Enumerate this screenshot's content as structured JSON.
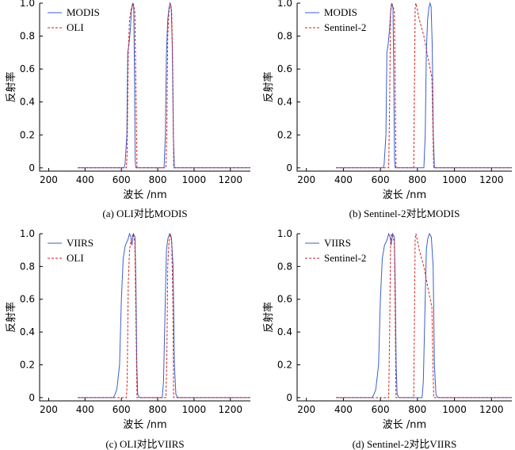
{
  "chart_data": [
    {
      "type": "line",
      "caption": "(a) OLI对比MODIS",
      "xlabel": "波长 /nm",
      "ylabel": "反射率",
      "xlim": [
        150,
        1310
      ],
      "ylim": [
        -0.02,
        1.0
      ],
      "xticks": [
        200,
        400,
        600,
        800,
        1000,
        1200
      ],
      "yticks": [
        0,
        0.2,
        0.4,
        0.6,
        0.8,
        1.0
      ],
      "ytick_labels": [
        "0",
        "0.2",
        "0.4",
        "0.6",
        "0.8",
        "1.0"
      ],
      "legend_position": "top-left",
      "series": [
        {
          "name": "MODIS",
          "style": "solid",
          "color": "#3a5fcd",
          "points": [
            [
              360,
              0
            ],
            [
              615,
              0
            ],
            [
              620,
              0.02
            ],
            [
              630,
              0.2
            ],
            [
              635,
              0.7
            ],
            [
              642,
              0.75
            ],
            [
              650,
              0.85
            ],
            [
              655,
              0.95
            ],
            [
              662,
              1.0
            ],
            [
              668,
              0.97
            ],
            [
              672,
              0.6
            ],
            [
              676,
              0.05
            ],
            [
              680,
              0
            ],
            [
              835,
              0
            ],
            [
              842,
              0.2
            ],
            [
              848,
              0.7
            ],
            [
              855,
              0.9
            ],
            [
              862,
              0.97
            ],
            [
              868,
              1.0
            ],
            [
              874,
              0.98
            ],
            [
              880,
              0.75
            ],
            [
              886,
              0.2
            ],
            [
              892,
              0
            ],
            [
              1310,
              0
            ]
          ]
        },
        {
          "name": "OLI",
          "style": "dashed",
          "color": "#d22020",
          "points": [
            [
              360,
              0
            ],
            [
              628,
              0
            ],
            [
              632,
              0.1
            ],
            [
              638,
              0.7
            ],
            [
              645,
              0.9
            ],
            [
              655,
              0.97
            ],
            [
              665,
              1.0
            ],
            [
              674,
              0.95
            ],
            [
              680,
              0.5
            ],
            [
              686,
              0
            ],
            [
              845,
              0
            ],
            [
              850,
              0.2
            ],
            [
              855,
              0.8
            ],
            [
              862,
              0.95
            ],
            [
              870,
              1.0
            ],
            [
              877,
              0.95
            ],
            [
              883,
              0.6
            ],
            [
              888,
              0
            ],
            [
              1310,
              0
            ]
          ]
        }
      ]
    },
    {
      "type": "line",
      "caption": "(b) Sentinel-2对比MODIS",
      "xlabel": "波长 /nm",
      "ylabel": "反射率",
      "xlim": [
        150,
        1310
      ],
      "ylim": [
        -0.02,
        1.0
      ],
      "xticks": [
        200,
        400,
        600,
        800,
        1000,
        1200
      ],
      "yticks": [
        0,
        0.2,
        0.4,
        0.6,
        0.8,
        1.0
      ],
      "ytick_labels": [
        "0",
        "0.2",
        "0.4",
        "0.6",
        "0.8",
        "1.0"
      ],
      "legend_position": "top-left",
      "series": [
        {
          "name": "MODIS",
          "style": "solid",
          "color": "#3a5fcd",
          "points": [
            [
              360,
              0
            ],
            [
              615,
              0
            ],
            [
              620,
              0.02
            ],
            [
              630,
              0.2
            ],
            [
              635,
              0.7
            ],
            [
              642,
              0.75
            ],
            [
              650,
              0.85
            ],
            [
              655,
              0.95
            ],
            [
              662,
              1.0
            ],
            [
              668,
              0.97
            ],
            [
              672,
              0.6
            ],
            [
              676,
              0.05
            ],
            [
              680,
              0
            ],
            [
              835,
              0
            ],
            [
              842,
              0.2
            ],
            [
              848,
              0.7
            ],
            [
              855,
              0.9
            ],
            [
              862,
              0.97
            ],
            [
              868,
              1.0
            ],
            [
              874,
              0.98
            ],
            [
              880,
              0.75
            ],
            [
              886,
              0.2
            ],
            [
              892,
              0
            ],
            [
              1310,
              0
            ]
          ]
        },
        {
          "name": "Sentinel-2",
          "style": "dashed",
          "color": "#d22020",
          "points": [
            [
              360,
              0
            ],
            [
              645,
              0
            ],
            [
              650,
              0.4
            ],
            [
              655,
              0.95
            ],
            [
              660,
              1.0
            ],
            [
              668,
              0.98
            ],
            [
              675,
              0.95
            ],
            [
              680,
              0.5
            ],
            [
              684,
              0
            ],
            [
              780,
              0
            ],
            [
              784,
              0.5
            ],
            [
              788,
              0.97
            ],
            [
              792,
              1.0
            ],
            [
              810,
              0.9
            ],
            [
              835,
              0.8
            ],
            [
              860,
              0.65
            ],
            [
              878,
              0.55
            ],
            [
              884,
              0.2
            ],
            [
              888,
              0
            ],
            [
              1310,
              0
            ]
          ]
        }
      ]
    },
    {
      "type": "line",
      "caption": "(c) OLI对比VIIRS",
      "xlabel": "波长 /nm",
      "ylabel": "反射率",
      "xlim": [
        150,
        1310
      ],
      "ylim": [
        -0.02,
        1.0
      ],
      "xticks": [
        200,
        400,
        600,
        800,
        1000,
        1200
      ],
      "yticks": [
        0,
        0.2,
        0.4,
        0.6,
        0.8,
        1.0
      ],
      "ytick_labels": [
        "0",
        "0.2",
        "0.4",
        "0.6",
        "0.8",
        "1.0"
      ],
      "legend_position": "top-left",
      "series": [
        {
          "name": "VIIRS",
          "style": "solid",
          "color": "#3a5fcd",
          "points": [
            [
              360,
              0
            ],
            [
              555,
              0
            ],
            [
              565,
              0.02
            ],
            [
              575,
              0.05
            ],
            [
              590,
              0.2
            ],
            [
              600,
              0.6
            ],
            [
              610,
              0.85
            ],
            [
              622,
              0.93
            ],
            [
              635,
              0.96
            ],
            [
              645,
              1.0
            ],
            [
              652,
              0.98
            ],
            [
              658,
              0.93
            ],
            [
              666,
              1.0
            ],
            [
              675,
              0.98
            ],
            [
              680,
              0.7
            ],
            [
              685,
              0.2
            ],
            [
              690,
              0.02
            ],
            [
              700,
              0
            ],
            [
              825,
              0
            ],
            [
              832,
              0.1
            ],
            [
              840,
              0.5
            ],
            [
              848,
              0.9
            ],
            [
              856,
              0.97
            ],
            [
              865,
              1.0
            ],
            [
              875,
              0.98
            ],
            [
              885,
              0.8
            ],
            [
              892,
              0.2
            ],
            [
              900,
              0.02
            ],
            [
              910,
              0
            ],
            [
              1310,
              0
            ]
          ]
        },
        {
          "name": "OLI",
          "style": "dashed",
          "color": "#d22020",
          "points": [
            [
              360,
              0
            ],
            [
              628,
              0
            ],
            [
              632,
              0.1
            ],
            [
              638,
              0.7
            ],
            [
              645,
              0.9
            ],
            [
              655,
              0.97
            ],
            [
              665,
              1.0
            ],
            [
              674,
              0.95
            ],
            [
              680,
              0.5
            ],
            [
              686,
              0
            ],
            [
              845,
              0
            ],
            [
              850,
              0.2
            ],
            [
              855,
              0.8
            ],
            [
              862,
              0.95
            ],
            [
              870,
              1.0
            ],
            [
              877,
              0.95
            ],
            [
              883,
              0.6
            ],
            [
              888,
              0
            ],
            [
              1310,
              0
            ]
          ]
        }
      ]
    },
    {
      "type": "line",
      "caption": "(d) Sentinel-2对比VIIRS",
      "xlabel": "波长 /nm",
      "ylabel": "反射率",
      "xlim": [
        150,
        1310
      ],
      "ylim": [
        -0.02,
        1.0
      ],
      "xticks": [
        200,
        400,
        600,
        800,
        1000,
        1200
      ],
      "yticks": [
        0,
        0.2,
        0.4,
        0.6,
        0.8,
        1.0
      ],
      "ytick_labels": [
        "0",
        "0.2",
        "0.4",
        "0.6",
        "0.8",
        "1.0"
      ],
      "legend_position": "top-left",
      "series": [
        {
          "name": "VIIRS",
          "style": "solid",
          "color": "#3a5fcd",
          "points": [
            [
              360,
              0
            ],
            [
              555,
              0
            ],
            [
              565,
              0.02
            ],
            [
              575,
              0.05
            ],
            [
              590,
              0.2
            ],
            [
              600,
              0.6
            ],
            [
              610,
              0.85
            ],
            [
              622,
              0.93
            ],
            [
              635,
              0.96
            ],
            [
              645,
              1.0
            ],
            [
              652,
              0.98
            ],
            [
              658,
              0.93
            ],
            [
              666,
              1.0
            ],
            [
              675,
              0.98
            ],
            [
              680,
              0.7
            ],
            [
              685,
              0.2
            ],
            [
              690,
              0.02
            ],
            [
              700,
              0
            ],
            [
              825,
              0
            ],
            [
              832,
              0.1
            ],
            [
              840,
              0.5
            ],
            [
              848,
              0.9
            ],
            [
              856,
              0.97
            ],
            [
              865,
              1.0
            ],
            [
              875,
              0.98
            ],
            [
              885,
              0.8
            ],
            [
              892,
              0.2
            ],
            [
              900,
              0.02
            ],
            [
              910,
              0
            ],
            [
              1310,
              0
            ]
          ]
        },
        {
          "name": "Sentinel-2",
          "style": "dashed",
          "color": "#d22020",
          "points": [
            [
              360,
              0
            ],
            [
              645,
              0
            ],
            [
              650,
              0.4
            ],
            [
              655,
              0.95
            ],
            [
              660,
              1.0
            ],
            [
              668,
              0.98
            ],
            [
              675,
              0.95
            ],
            [
              680,
              0.5
            ],
            [
              684,
              0
            ],
            [
              780,
              0
            ],
            [
              784,
              0.5
            ],
            [
              788,
              0.97
            ],
            [
              792,
              1.0
            ],
            [
              810,
              0.9
            ],
            [
              835,
              0.8
            ],
            [
              860,
              0.65
            ],
            [
              878,
              0.55
            ],
            [
              884,
              0.2
            ],
            [
              888,
              0
            ],
            [
              1310,
              0
            ]
          ]
        }
      ]
    }
  ]
}
